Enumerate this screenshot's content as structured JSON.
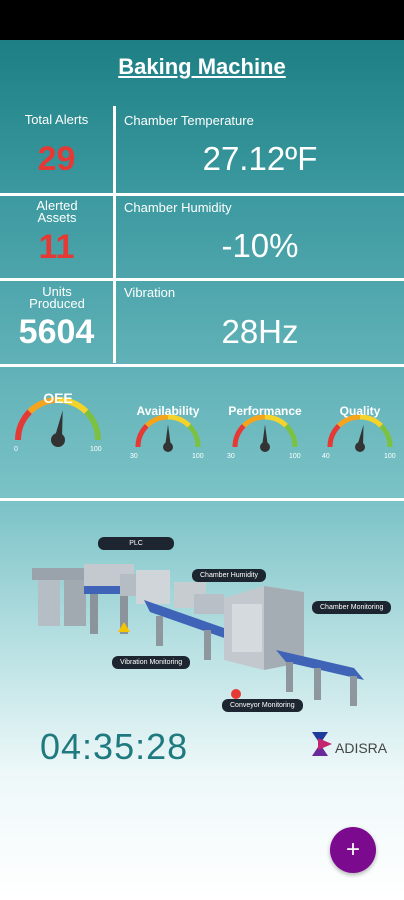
{
  "header": {
    "title": "Baking Machine"
  },
  "stats": {
    "total_alerts": {
      "label": "Total Alerts",
      "value": "29"
    },
    "alerted_assets": {
      "label": "Alerted Assets",
      "value": "11"
    },
    "units_produced": {
      "label": "Units Produced",
      "value": "5604"
    }
  },
  "sensors": {
    "temperature": {
      "label": "Chamber Temperature",
      "value": "27.12ºF"
    },
    "humidity": {
      "label": "Chamber Humidity",
      "value": "-10%"
    },
    "vibration": {
      "label": "Vibration",
      "value": "28Hz"
    }
  },
  "gauges": [
    {
      "title": "OEE",
      "min": "0",
      "max": "100",
      "level": 0.55
    },
    {
      "title": "Availability",
      "min": "30",
      "max": "100",
      "level": 0.5
    },
    {
      "title": "Performance",
      "min": "30",
      "max": "100",
      "level": 0.5
    },
    {
      "title": "Quality",
      "min": "40",
      "max": "100",
      "level": 0.55
    }
  ],
  "machine_tags": {
    "plc": "PLC",
    "chamber_humidity": "Chamber Humidity",
    "chamber_monitoring": "Chamber Monitoring",
    "vibration_monitoring": "Vibration Monitoring",
    "conveyor_monitoring": "Conveyor Monitoring"
  },
  "clock": "04:35:28",
  "brand": {
    "name": "ADISRA"
  },
  "fab": {
    "symbol": "+"
  },
  "colors": {
    "alert_red": "#e53935",
    "fab_purple": "#7b0a8e",
    "clock_teal": "#1f7a80"
  }
}
